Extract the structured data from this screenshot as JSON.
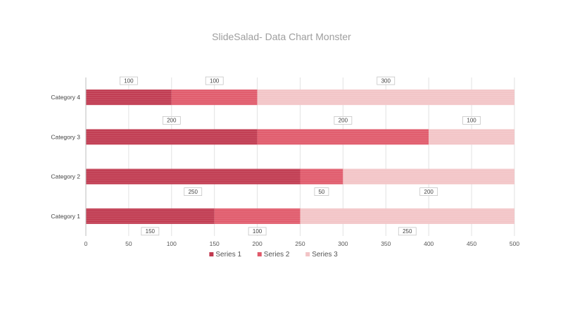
{
  "chart_data": {
    "type": "bar",
    "orientation": "horizontal",
    "stacked": true,
    "title": "SlideSalad- Data Chart Monster",
    "categories": [
      "Category 1",
      "Category 2",
      "Category 3",
      "Category 4"
    ],
    "series": [
      {
        "name": "Series 1",
        "values": [
          150,
          250,
          200,
          100
        ],
        "color": "#c0394f"
      },
      {
        "name": "Series 2",
        "values": [
          100,
          50,
          200,
          100
        ],
        "color": "#e0596a"
      },
      {
        "name": "Series 3",
        "values": [
          250,
          200,
          100,
          300
        ],
        "color": "#f2c4c6"
      }
    ],
    "xlim": [
      0,
      500
    ],
    "xticks": [
      0,
      50,
      100,
      150,
      200,
      250,
      300,
      350,
      400,
      450,
      500
    ],
    "grid": true,
    "legend_position": "bottom",
    "data_labels": true
  }
}
